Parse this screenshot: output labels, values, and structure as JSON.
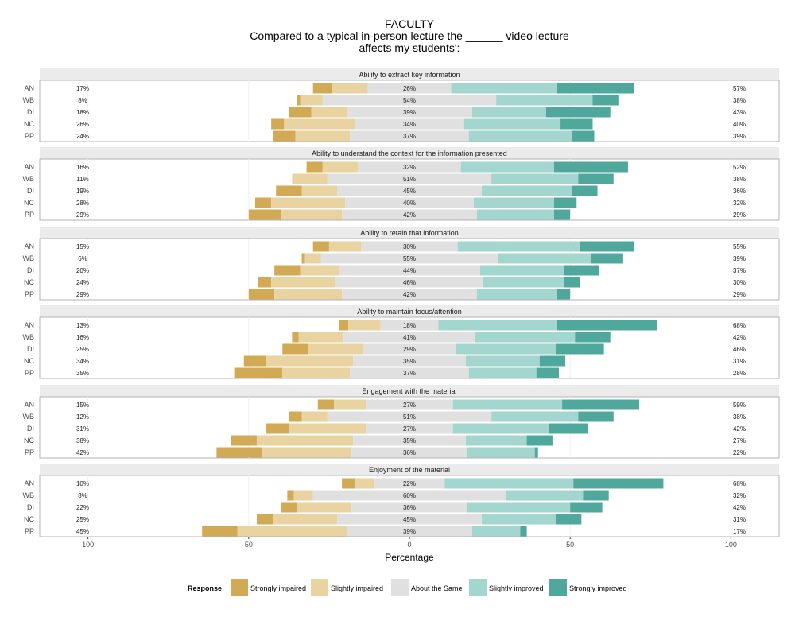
{
  "title_lines": [
    "FACULTY",
    "Compared to a typical in-person lecture the ______ video lecture",
    "affects my students':"
  ],
  "chart_data": {
    "type": "bar",
    "orientation": "horizontal-diverging-stacked",
    "title": "FACULTY\nCompared to a typical in-person lecture the ______ video lecture\naffects my students':",
    "xlabel": "Percentage",
    "ylabel": "",
    "xlim": [
      -100,
      100
    ],
    "x_ticks": [
      -100,
      -50,
      0,
      50,
      100
    ],
    "x_tick_labels": [
      "100",
      "50",
      "0",
      "50",
      "100"
    ],
    "categories": [
      "AN",
      "WB",
      "DI",
      "NC",
      "PP"
    ],
    "response_levels": [
      "Strongly impaired",
      "Slightly impaired",
      "About the Same",
      "Slightly improved",
      "Strongly improved"
    ],
    "colors": {
      "Strongly impaired": "#d2a954",
      "Slightly impaired": "#e8d3a1",
      "About the Same": "#e0e0e0",
      "Slightly improved": "#a2d6ce",
      "Strongly improved": "#4fa89b"
    },
    "legend": {
      "title": "Response",
      "position": "bottom"
    },
    "grid": true,
    "facets": [
      {
        "title": "Ability to extract key information",
        "rows": [
          {
            "label": "AN",
            "values": [
              6,
              11,
              26,
              33,
              24
            ],
            "left_pct": "17%",
            "mid_pct": "26%",
            "right_pct": "57%"
          },
          {
            "label": "WB",
            "values": [
              1,
              7,
              54,
              30,
              8
            ],
            "left_pct": "8%",
            "mid_pct": "54%",
            "right_pct": "38%"
          },
          {
            "label": "DI",
            "values": [
              7,
              11,
              39,
              23,
              20
            ],
            "left_pct": "18%",
            "mid_pct": "39%",
            "right_pct": "43%"
          },
          {
            "label": "NC",
            "values": [
              4,
              22,
              34,
              30,
              10
            ],
            "left_pct": "26%",
            "mid_pct": "34%",
            "right_pct": "40%"
          },
          {
            "label": "PP",
            "values": [
              7,
              17,
              37,
              32,
              7
            ],
            "left_pct": "24%",
            "mid_pct": "37%",
            "right_pct": "39%"
          }
        ]
      },
      {
        "title": "Ability to understand the context for the information presented",
        "rows": [
          {
            "label": "AN",
            "values": [
              5,
              11,
              32,
              29,
              23
            ],
            "left_pct": "16%",
            "mid_pct": "32%",
            "right_pct": "52%"
          },
          {
            "label": "WB",
            "values": [
              0,
              11,
              51,
              27,
              11
            ],
            "left_pct": "11%",
            "mid_pct": "51%",
            "right_pct": "38%"
          },
          {
            "label": "DI",
            "values": [
              8,
              11,
              45,
              28,
              8
            ],
            "left_pct": "19%",
            "mid_pct": "45%",
            "right_pct": "36%"
          },
          {
            "label": "NC",
            "values": [
              5,
              23,
              40,
              25,
              7
            ],
            "left_pct": "28%",
            "mid_pct": "40%",
            "right_pct": "32%"
          },
          {
            "label": "PP",
            "values": [
              10,
              19,
              42,
              24,
              5
            ],
            "left_pct": "29%",
            "mid_pct": "42%",
            "right_pct": "29%"
          }
        ]
      },
      {
        "title": "Ability to retain that information",
        "rows": [
          {
            "label": "AN",
            "values": [
              5,
              10,
              30,
              38,
              17
            ],
            "left_pct": "15%",
            "mid_pct": "30%",
            "right_pct": "55%"
          },
          {
            "label": "WB",
            "values": [
              1,
              5,
              55,
              29,
              10
            ],
            "left_pct": "6%",
            "mid_pct": "55%",
            "right_pct": "39%"
          },
          {
            "label": "DI",
            "values": [
              8,
              12,
              44,
              26,
              11
            ],
            "left_pct": "20%",
            "mid_pct": "44%",
            "right_pct": "37%"
          },
          {
            "label": "NC",
            "values": [
              4,
              20,
              46,
              25,
              5
            ],
            "left_pct": "24%",
            "mid_pct": "46%",
            "right_pct": "30%"
          },
          {
            "label": "PP",
            "values": [
              8,
              21,
              42,
              25,
              4
            ],
            "left_pct": "29%",
            "mid_pct": "42%",
            "right_pct": "29%"
          }
        ]
      },
      {
        "title": "Ability to maintain focus/attention",
        "rows": [
          {
            "label": "AN",
            "values": [
              3,
              10,
              18,
              37,
              31
            ],
            "left_pct": "13%",
            "mid_pct": "18%",
            "right_pct": "68%"
          },
          {
            "label": "WB",
            "values": [
              2,
              14,
              41,
              31,
              11
            ],
            "left_pct": "16%",
            "mid_pct": "41%",
            "right_pct": "42%"
          },
          {
            "label": "DI",
            "values": [
              8,
              17,
              29,
              31,
              15
            ],
            "left_pct": "25%",
            "mid_pct": "29%",
            "right_pct": "46%"
          },
          {
            "label": "NC",
            "values": [
              7,
              27,
              35,
              23,
              8
            ],
            "left_pct": "34%",
            "mid_pct": "35%",
            "right_pct": "31%"
          },
          {
            "label": "PP",
            "values": [
              15,
              21,
              37,
              21,
              7
            ],
            "left_pct": "35%",
            "mid_pct": "37%",
            "right_pct": "28%"
          }
        ]
      },
      {
        "title": "Engagement with the material",
        "rows": [
          {
            "label": "AN",
            "values": [
              5,
              10,
              27,
              34,
              24
            ],
            "left_pct": "15%",
            "mid_pct": "27%",
            "right_pct": "59%"
          },
          {
            "label": "WB",
            "values": [
              4,
              8,
              51,
              27,
              11
            ],
            "left_pct": "12%",
            "mid_pct": "51%",
            "right_pct": "38%"
          },
          {
            "label": "DI",
            "values": [
              7,
              24,
              27,
              30,
              12
            ],
            "left_pct": "31%",
            "mid_pct": "27%",
            "right_pct": "42%"
          },
          {
            "label": "NC",
            "values": [
              8,
              30,
              35,
              19,
              8
            ],
            "left_pct": "38%",
            "mid_pct": "35%",
            "right_pct": "27%"
          },
          {
            "label": "PP",
            "values": [
              14,
              28,
              36,
              21,
              1
            ],
            "left_pct": "42%",
            "mid_pct": "36%",
            "right_pct": "22%"
          }
        ]
      },
      {
        "title": "Enjoyment of the material",
        "rows": [
          {
            "label": "AN",
            "values": [
              4,
              6,
              22,
              40,
              28
            ],
            "left_pct": "10%",
            "mid_pct": "22%",
            "right_pct": "68%"
          },
          {
            "label": "WB",
            "values": [
              2,
              6,
              60,
              24,
              8
            ],
            "left_pct": "8%",
            "mid_pct": "60%",
            "right_pct": "32%"
          },
          {
            "label": "DI",
            "values": [
              5,
              17,
              36,
              32,
              10
            ],
            "left_pct": "22%",
            "mid_pct": "36%",
            "right_pct": "42%"
          },
          {
            "label": "NC",
            "values": [
              5,
              20,
              45,
              23,
              8
            ],
            "left_pct": "25%",
            "mid_pct": "45%",
            "right_pct": "31%"
          },
          {
            "label": "PP",
            "values": [
              11,
              34,
              39,
              15,
              2
            ],
            "left_pct": "45%",
            "mid_pct": "39%",
            "right_pct": "17%"
          }
        ]
      }
    ]
  }
}
